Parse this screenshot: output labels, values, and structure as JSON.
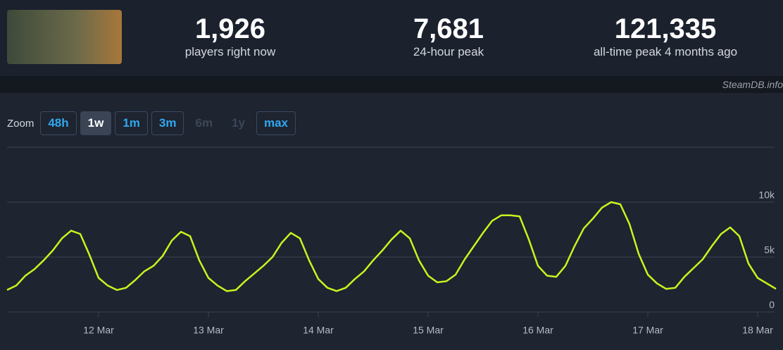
{
  "header": {
    "stats": [
      {
        "value": "1,926",
        "label": "players right now"
      },
      {
        "value": "7,681",
        "label": "24-hour peak"
      },
      {
        "value": "121,335",
        "label": "all-time peak 4 months ago"
      }
    ],
    "watermark": "SteamDB.info"
  },
  "zoom": {
    "label": "Zoom",
    "buttons": [
      "48h",
      "1w",
      "1m",
      "3m",
      "6m",
      "1y",
      "max"
    ]
  },
  "chart_data": {
    "type": "line",
    "color": "#c8f41e",
    "grid": true,
    "categories": [
      null,
      null,
      null,
      null,
      null,
      null,
      null,
      null,
      null,
      null,
      "12 Mar",
      null,
      null,
      null,
      null,
      null,
      null,
      null,
      null,
      null,
      null,
      null,
      "13 Mar",
      null,
      null,
      null,
      null,
      null,
      null,
      null,
      null,
      null,
      null,
      null,
      "14 Mar",
      null,
      null,
      null,
      null,
      null,
      null,
      null,
      null,
      null,
      null,
      null,
      "15 Mar",
      null,
      null,
      null,
      null,
      null,
      null,
      null,
      null,
      null,
      null,
      null,
      "16 Mar",
      null,
      null,
      null,
      null,
      null,
      null,
      null,
      null,
      null,
      null,
      null,
      "17 Mar",
      null,
      null,
      null,
      null,
      null,
      null,
      null,
      null,
      null,
      null,
      null,
      "18 Mar",
      null,
      null
    ],
    "values": [
      2000,
      2400,
      3300,
      3900,
      4700,
      5600,
      6700,
      7400,
      7100,
      5200,
      3100,
      2400,
      2000,
      2200,
      2900,
      3700,
      4200,
      5100,
      6500,
      7300,
      6900,
      4700,
      3100,
      2400,
      1900,
      2000,
      2800,
      3500,
      4200,
      5000,
      6300,
      7200,
      6700,
      4700,
      3000,
      2200,
      1900,
      2200,
      3000,
      3700,
      4700,
      5600,
      6600,
      7400,
      6700,
      4700,
      3300,
      2700,
      2800,
      3400,
      4800,
      6000,
      7200,
      8300,
      8800,
      8800,
      8700,
      6600,
      4200,
      3300,
      3200,
      4200,
      6000,
      7600,
      8500,
      9500,
      10000,
      9800,
      8000,
      5300,
      3400,
      2600,
      2100,
      2200,
      3200,
      4000,
      4800,
      6000,
      7100,
      7700,
      6900,
      4400,
      3100,
      2600,
      2100
    ],
    "ylim": [
      0,
      15000
    ],
    "yticks": [
      0,
      {
        "value": 5000,
        "label": "5k"
      },
      {
        "value": 10000,
        "label": "10k"
      }
    ]
  }
}
